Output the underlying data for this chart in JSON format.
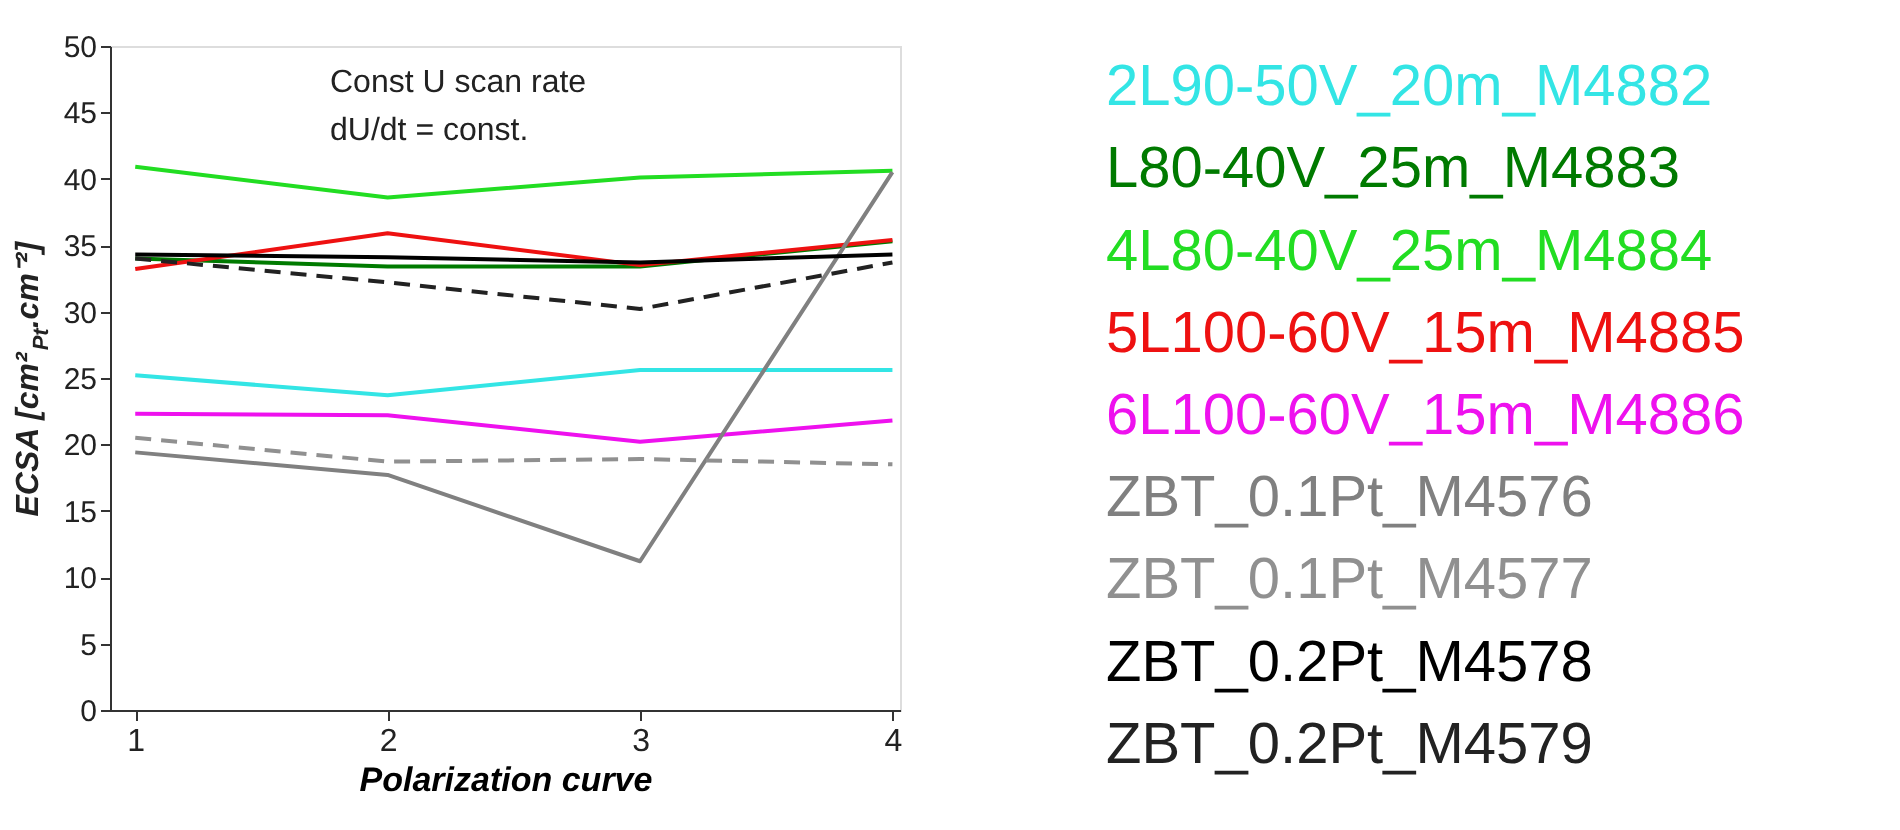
{
  "chart_data": {
    "type": "line",
    "xlabel": "Polarization curve",
    "ylabel": "ECSA [cm²$_{Pt}$.cm⁻²]",
    "x": [
      1,
      2,
      3,
      4
    ],
    "xlim": [
      0.9,
      4.03
    ],
    "xticks": [
      1,
      2,
      3,
      4
    ],
    "ylim": [
      0,
      50
    ],
    "yticks": [
      0,
      5,
      10,
      15,
      20,
      25,
      30,
      35,
      40,
      45,
      50
    ],
    "grid": false,
    "legend": "right",
    "marker": "none",
    "annotations": [
      "Const U scan rate",
      "dU/dt = const."
    ],
    "series": [
      {
        "name": "2L90-50V_20m_M4882",
        "color": "#33e5e5",
        "values": [
          25.2,
          23.7,
          25.6,
          25.6
        ],
        "line_style": "solid"
      },
      {
        "name": "L80-40V_25m_M4883",
        "color": "#007a00",
        "values": [
          34.0,
          33.4,
          33.4,
          35.3
        ],
        "line_style": "solid"
      },
      {
        "name": "4L80-40V_25m_M4884",
        "color": "#22dd22",
        "values": [
          40.9,
          38.6,
          40.1,
          40.6
        ],
        "line_style": "solid"
      },
      {
        "name": "5L100-60V_15m_M4885",
        "color": "#ee1111",
        "values": [
          33.2,
          35.9,
          33.5,
          35.4
        ],
        "line_style": "solid"
      },
      {
        "name": "6L100-60V_15m_M4886",
        "color": "#ee11ee",
        "values": [
          22.3,
          22.2,
          20.2,
          21.8
        ],
        "line_style": "solid"
      },
      {
        "name": "ZBT_0.1Pt_M4576",
        "color": "#808080",
        "values": [
          19.4,
          17.7,
          11.2,
          40.5
        ],
        "line_style": "solid"
      },
      {
        "name": "ZBT_0.1Pt_M4577",
        "color": "#909090",
        "values": [
          20.5,
          18.7,
          18.9,
          18.5
        ],
        "line_style": "dashed"
      },
      {
        "name": "ZBT_0.2Pt_M4578",
        "color": "#000000",
        "values": [
          34.3,
          34.1,
          33.7,
          34.3
        ],
        "line_style": "solid"
      },
      {
        "name": "ZBT_0.2Pt_M4579",
        "color": "#222222",
        "values": [
          34.0,
          32.2,
          30.2,
          33.7
        ],
        "line_style": "dashed"
      }
    ]
  }
}
